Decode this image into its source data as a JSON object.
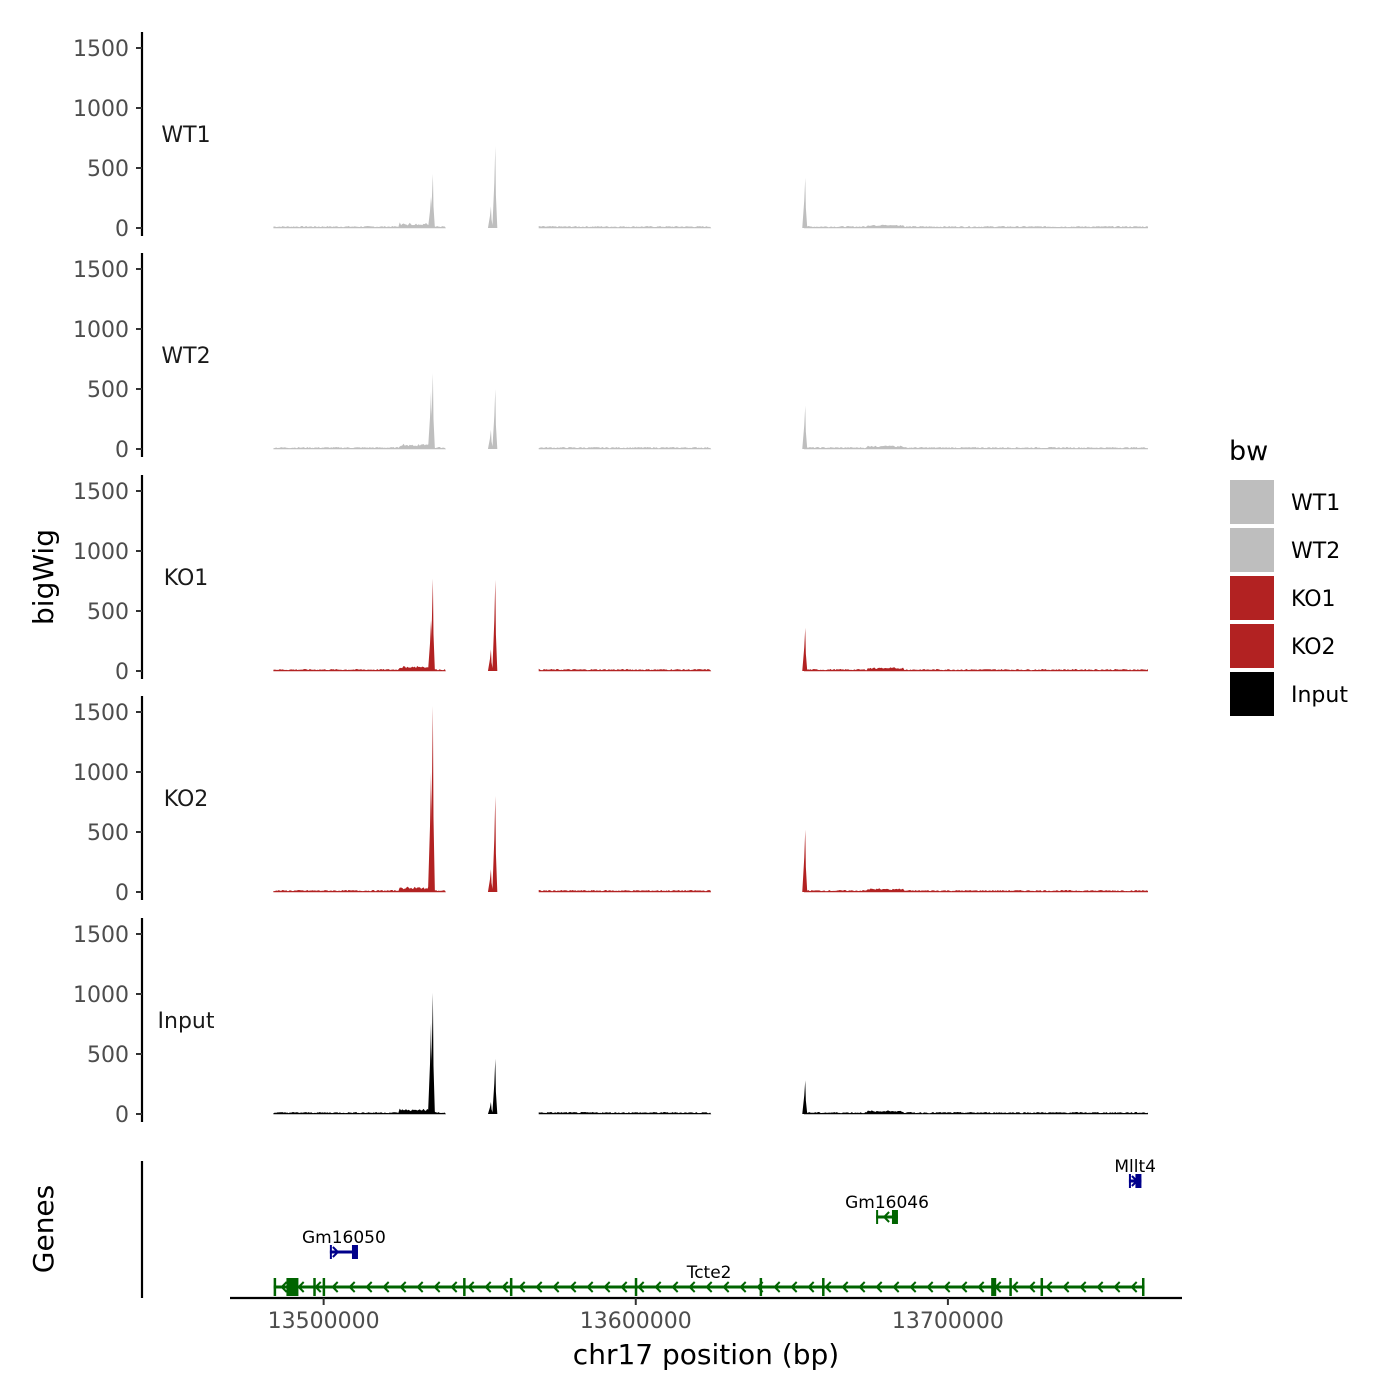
{
  "chart_data": {
    "type": "area",
    "title": "",
    "ylabel": "bigWig",
    "genes_ylabel": "Genes",
    "xlabel": "chr17 position (bp)",
    "xlim": [
      13470000,
      13775000
    ],
    "x_ticks": [
      13500000,
      13600000,
      13700000
    ],
    "x_tick_labels": [
      "13500000",
      "13600000",
      "13700000"
    ],
    "y_ticks": [
      0,
      500,
      1000,
      1500
    ],
    "y_tick_labels": [
      "0",
      "500",
      "1000",
      "1500"
    ],
    "ylim": [
      0,
      1500
    ],
    "data_ranges": [
      [
        13484000,
        13539000
      ],
      [
        13569000,
        13624000
      ],
      [
        13654000,
        13764000
      ]
    ],
    "series": [
      {
        "name": "WT1",
        "color": "#bebebe",
        "peaks": [
          {
            "x": 13535000,
            "y": 450
          },
          {
            "x": 13534400,
            "y": 260
          },
          {
            "x": 13555000,
            "y": 680
          },
          {
            "x": 13553600,
            "y": 180
          },
          {
            "x": 13654300,
            "y": 420
          }
        ]
      },
      {
        "name": "WT2",
        "color": "#bebebe",
        "peaks": [
          {
            "x": 13535000,
            "y": 630
          },
          {
            "x": 13534400,
            "y": 480
          },
          {
            "x": 13555000,
            "y": 500
          },
          {
            "x": 13553600,
            "y": 160
          },
          {
            "x": 13654300,
            "y": 360
          }
        ]
      },
      {
        "name": "KO1",
        "color": "#b22222",
        "peaks": [
          {
            "x": 13535000,
            "y": 770
          },
          {
            "x": 13534400,
            "y": 420
          },
          {
            "x": 13555000,
            "y": 760
          },
          {
            "x": 13553600,
            "y": 180
          },
          {
            "x": 13654300,
            "y": 360
          }
        ]
      },
      {
        "name": "KO2",
        "color": "#b22222",
        "peaks": [
          {
            "x": 13535000,
            "y": 1550
          },
          {
            "x": 13534400,
            "y": 1000
          },
          {
            "x": 13555000,
            "y": 800
          },
          {
            "x": 13553600,
            "y": 190
          },
          {
            "x": 13654300,
            "y": 520
          }
        ]
      },
      {
        "name": "Input",
        "color": "#000000",
        "peaks": [
          {
            "x": 13535000,
            "y": 1010
          },
          {
            "x": 13534400,
            "y": 760
          },
          {
            "x": 13555000,
            "y": 460
          },
          {
            "x": 13553600,
            "y": 100
          },
          {
            "x": 13654300,
            "y": 280
          }
        ]
      }
    ],
    "legend": {
      "title": "bw",
      "position": "right",
      "entries": [
        {
          "label": "WT1",
          "color": "#bebebe"
        },
        {
          "label": "WT2",
          "color": "#bebebe"
        },
        {
          "label": "KO1",
          "color": "#b22222"
        },
        {
          "label": "KO2",
          "color": "#b22222"
        },
        {
          "label": "Input",
          "color": "#000000"
        }
      ]
    },
    "genes": [
      {
        "name": "Gm16050",
        "start": 13502000,
        "end": 13511000,
        "strand": "+",
        "row": 2,
        "color": "#00008b"
      },
      {
        "name": "Gm16046",
        "start": 13677000,
        "end": 13684000,
        "strand": "-",
        "row": 3,
        "color": "#006400"
      },
      {
        "name": "Mllt4",
        "start": 13758000,
        "end": 13762000,
        "strand": "+",
        "row": 4,
        "color": "#00008b"
      },
      {
        "name": "Tcte2",
        "start": 13484000,
        "end": 13763000,
        "strand": "-",
        "row": 1,
        "color": "#006400"
      }
    ]
  }
}
